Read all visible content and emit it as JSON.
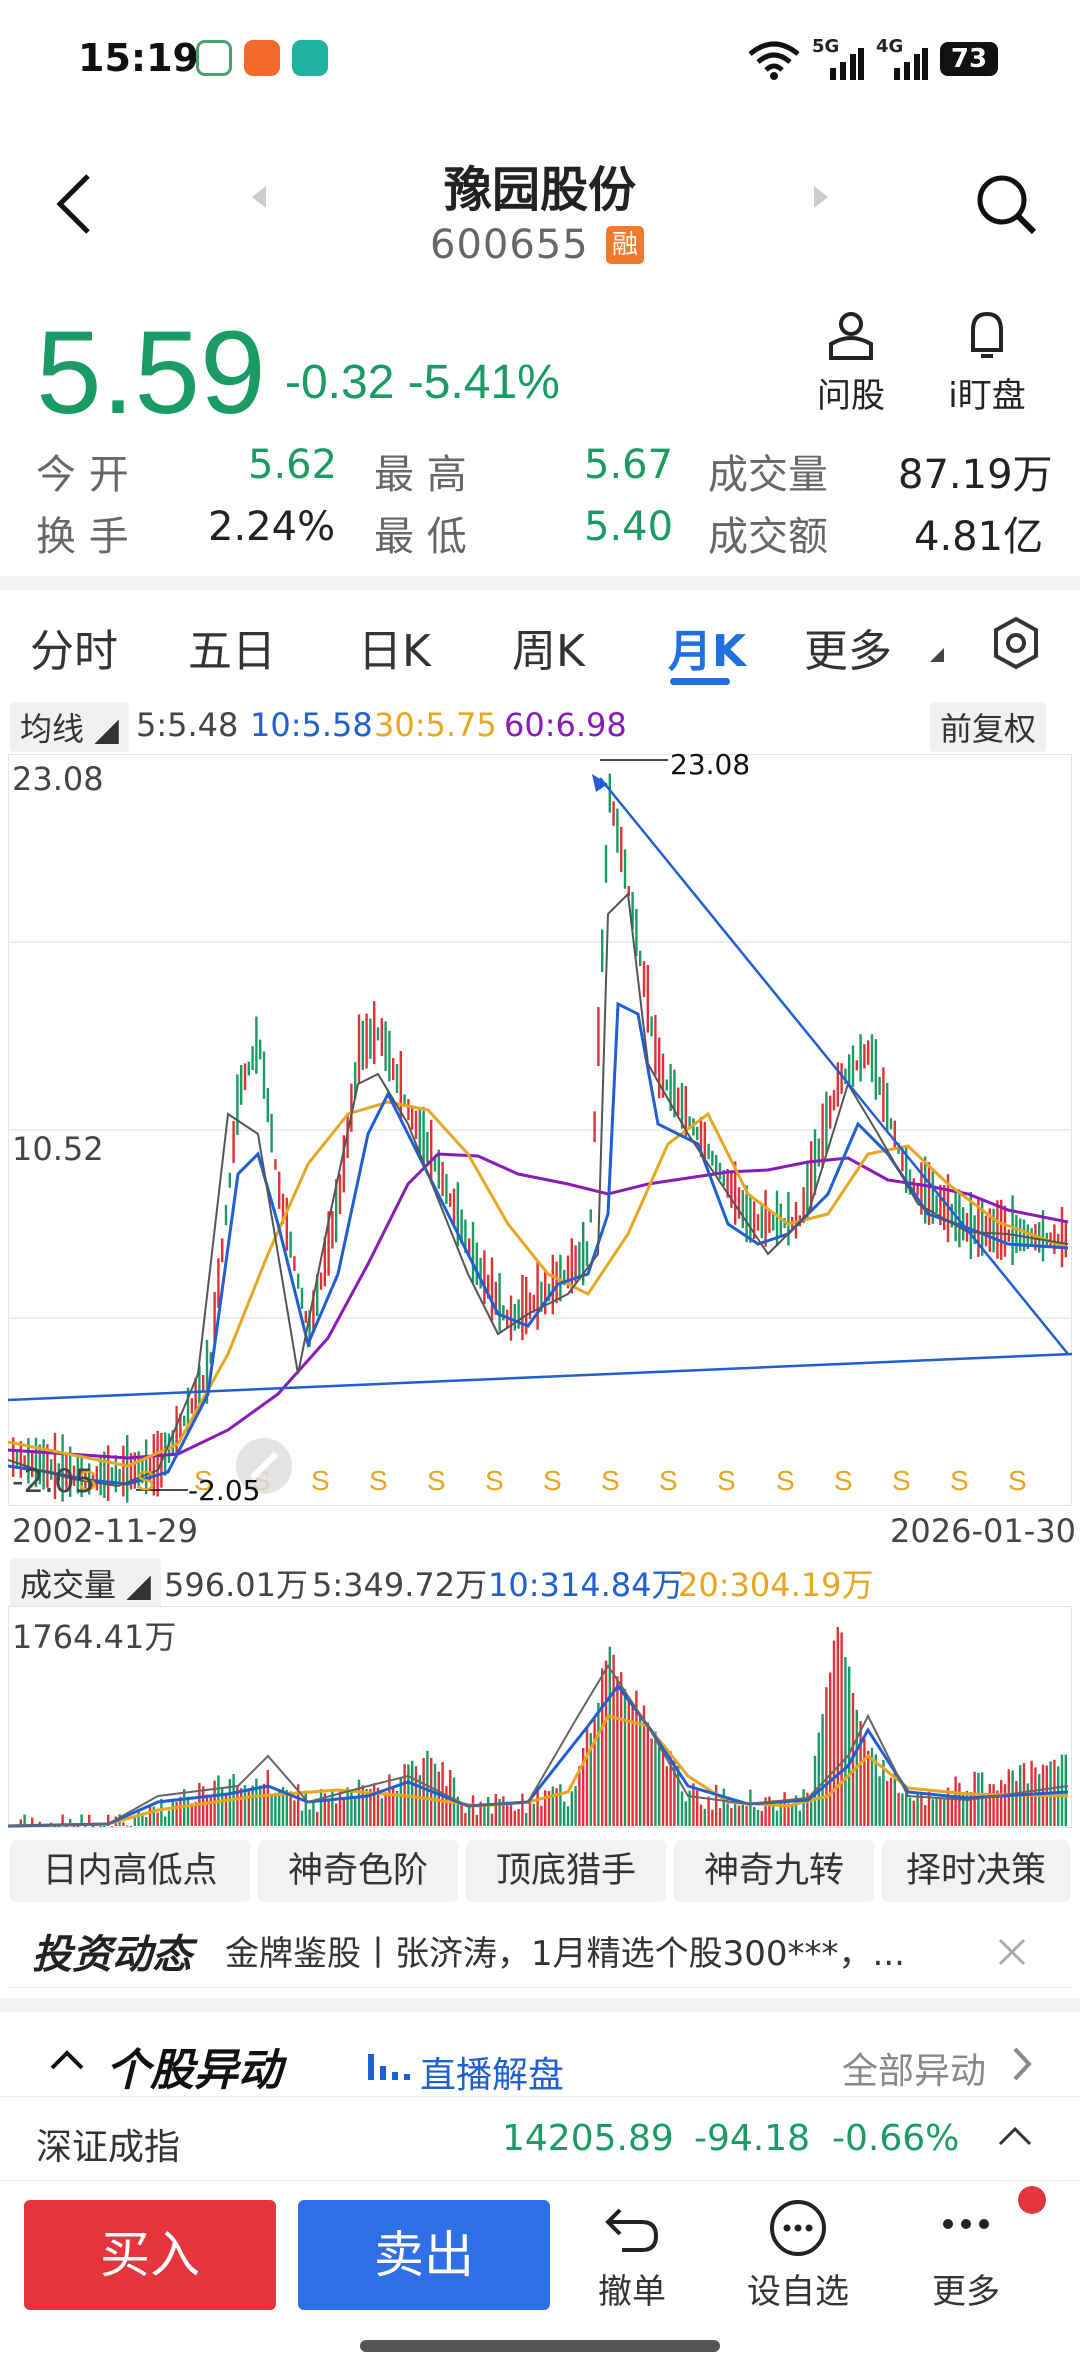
{
  "status_bar": {
    "time": "15:19",
    "battery": "73",
    "network_5g": "5G",
    "network_4g": "4G"
  },
  "header": {
    "stock_name": "豫园股份",
    "stock_code": "600655",
    "margin_badge": "融"
  },
  "quote": {
    "price": "5.59",
    "change": "-0.32",
    "change_pct": "-5.41%",
    "tools": [
      {
        "label": "问股"
      },
      {
        "label": "i盯盘"
      }
    ],
    "stats": {
      "open_label": "今 开",
      "open": "5.62",
      "high_label": "最 高",
      "high": "5.67",
      "volume_label": "成交量",
      "volume": "87.19万",
      "turnover_label": "换 手",
      "turnover": "2.24%",
      "low_label": "最 低",
      "low": "5.40",
      "amount_label": "成交额",
      "amount": "4.81亿"
    }
  },
  "tabs": [
    "分时",
    "五日",
    "日K",
    "周K",
    "月K",
    "更多"
  ],
  "active_tab": "月K",
  "ma_legend": {
    "label": "均线",
    "ma5": "5:5.48",
    "ma10": "10:5.58",
    "ma30": "30:5.75",
    "ma60": "60:6.98",
    "adjust": "前复权"
  },
  "chart_data": {
    "type": "candlestick",
    "ymax_label": "23.08",
    "ymid_label": "10.52",
    "ymin_label": "-2.05",
    "high_marker": "23.08",
    "low_marker": "-2.05",
    "start_date": "2002-11-29",
    "end_date": "2026-01-30",
    "ylim": [
      -2.05,
      23.08
    ],
    "dividend_marker": "S",
    "dividend_count": 17
  },
  "volume_legend": {
    "label": "成交量",
    "vol": "596.01万",
    "ma5": "5:349.72万",
    "ma10": "10:314.84万",
    "ma20": "20:304.19万",
    "max_label": "1764.41万"
  },
  "features": [
    "日内高低点",
    "神奇色阶",
    "顶底猎手",
    "神奇九转",
    "择时决策"
  ],
  "news": {
    "label": "投资动态",
    "text": "金牌鉴股丨张济涛，1月精选个股300***，..."
  },
  "movement": {
    "title": "个股异动",
    "live": "直播解盘",
    "all": "全部异动"
  },
  "index_bar": {
    "name": "深证成指",
    "value": "14205.89",
    "change": "-94.18",
    "pct": "-0.66%"
  },
  "bottom": {
    "buy": "买入",
    "sell": "卖出",
    "tools": [
      {
        "label": "撤单"
      },
      {
        "label": "设自选"
      },
      {
        "label": "更多"
      }
    ]
  }
}
